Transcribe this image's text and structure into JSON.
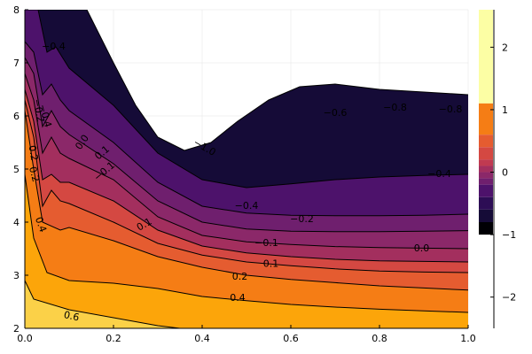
{
  "chart_data": {
    "type": "contour",
    "title": "",
    "xlabel": "",
    "ylabel": "",
    "xlim": [
      0.0,
      1.0
    ],
    "ylim": [
      2,
      8
    ],
    "x_ticks": [
      "0.0",
      "0.2",
      "0.4",
      "0.6",
      "0.8",
      "1.0"
    ],
    "y_ticks": [
      "2",
      "3",
      "4",
      "5",
      "6",
      "7",
      "8"
    ],
    "grid": true,
    "colormap": "inferno",
    "colorbar": {
      "range": [
        -2.5,
        2.6
      ],
      "ticks": [
        "2",
        "1",
        "0",
        "−1",
        "−2"
      ],
      "tick_values": [
        2,
        1,
        0,
        -1,
        -2
      ],
      "bands": [
        {
          "from": 1.1,
          "to": 2.6,
          "color": "#fcfea4"
        },
        {
          "from": 0.6,
          "to": 1.1,
          "color": "#f57d15"
        },
        {
          "from": 0.4,
          "to": 0.6,
          "color": "#e55c30"
        },
        {
          "from": 0.2,
          "to": 0.4,
          "color": "#d44842"
        },
        {
          "from": 0.1,
          "to": 0.2,
          "color": "#c03a51"
        },
        {
          "from": 0.0,
          "to": 0.1,
          "color": "#a32f5e"
        },
        {
          "from": -0.1,
          "to": 0.0,
          "color": "#8b2869"
        },
        {
          "from": -0.2,
          "to": -0.1,
          "color": "#6f1f6e"
        },
        {
          "from": -0.4,
          "to": -0.2,
          "color": "#4d126b"
        },
        {
          "from": -0.6,
          "to": -0.4,
          "color": "#2d0d55"
        },
        {
          "from": -0.8,
          "to": -0.6,
          "color": "#150b37"
        },
        {
          "from": -1.0,
          "to": -0.8,
          "color": "#000004"
        }
      ]
    },
    "regions": [
      {
        "level": 0.6,
        "color": "#fbd148",
        "boundary": [
          [
            0.0,
            2.9
          ],
          [
            0.02,
            2.55
          ],
          [
            0.1,
            2.35
          ],
          [
            0.2,
            2.2
          ],
          [
            0.3,
            2.05
          ],
          [
            0.35,
            2.0
          ]
        ]
      },
      {
        "level": 0.4,
        "color": "#fca50a",
        "boundary": [
          [
            0.0,
            4.9
          ],
          [
            0.02,
            3.7
          ],
          [
            0.05,
            3.05
          ],
          [
            0.1,
            2.9
          ],
          [
            0.2,
            2.85
          ],
          [
            0.3,
            2.75
          ],
          [
            0.4,
            2.6
          ],
          [
            0.5,
            2.52
          ],
          [
            0.6,
            2.45
          ],
          [
            0.7,
            2.4
          ],
          [
            0.8,
            2.36
          ],
          [
            0.9,
            2.33
          ],
          [
            1.0,
            2.3
          ]
        ]
      },
      {
        "level": 0.2,
        "color": "#f57d15",
        "boundary": [
          [
            0.0,
            6.1
          ],
          [
            0.02,
            5.0
          ],
          [
            0.04,
            4.0
          ],
          [
            0.08,
            3.85
          ],
          [
            0.1,
            3.9
          ],
          [
            0.2,
            3.65
          ],
          [
            0.3,
            3.35
          ],
          [
            0.4,
            3.15
          ],
          [
            0.5,
            3.0
          ],
          [
            0.6,
            2.92
          ],
          [
            0.7,
            2.86
          ],
          [
            0.8,
            2.8
          ],
          [
            0.9,
            2.76
          ],
          [
            1.0,
            2.72
          ]
        ]
      },
      {
        "level": 0.1,
        "color": "#e55c30",
        "boundary": [
          [
            0.0,
            6.3
          ],
          [
            0.02,
            5.6
          ],
          [
            0.04,
            4.3
          ],
          [
            0.06,
            4.6
          ],
          [
            0.08,
            4.4
          ],
          [
            0.1,
            4.35
          ],
          [
            0.2,
            4.0
          ],
          [
            0.3,
            3.6
          ],
          [
            0.4,
            3.38
          ],
          [
            0.5,
            3.25
          ],
          [
            0.6,
            3.18
          ],
          [
            0.7,
            3.12
          ],
          [
            0.8,
            3.08
          ],
          [
            0.9,
            3.06
          ],
          [
            1.0,
            3.05
          ]
        ]
      },
      {
        "level": 0.0,
        "color": "#d44842",
        "boundary": [
          [
            0.0,
            6.5
          ],
          [
            0.02,
            5.9
          ],
          [
            0.04,
            4.8
          ],
          [
            0.06,
            4.9
          ],
          [
            0.08,
            4.75
          ],
          [
            0.1,
            4.75
          ],
          [
            0.2,
            4.4
          ],
          [
            0.3,
            3.85
          ],
          [
            0.4,
            3.55
          ],
          [
            0.5,
            3.42
          ],
          [
            0.6,
            3.35
          ],
          [
            0.7,
            3.3
          ],
          [
            0.8,
            3.27
          ],
          [
            0.9,
            3.26
          ],
          [
            1.0,
            3.25
          ]
        ]
      },
      {
        "level": -0.1,
        "color": "#a32f5e",
        "boundary": [
          [
            0.0,
            6.8
          ],
          [
            0.02,
            6.3
          ],
          [
            0.04,
            5.3
          ],
          [
            0.06,
            5.6
          ],
          [
            0.08,
            5.3
          ],
          [
            0.1,
            5.2
          ],
          [
            0.2,
            4.8
          ],
          [
            0.3,
            4.1
          ],
          [
            0.4,
            3.75
          ],
          [
            0.5,
            3.63
          ],
          [
            0.6,
            3.58
          ],
          [
            0.7,
            3.54
          ],
          [
            0.8,
            3.52
          ],
          [
            0.9,
            3.51
          ],
          [
            1.0,
            3.5
          ]
        ]
      },
      {
        "level": -0.2,
        "color": "#8b2869",
        "boundary": [
          [
            0.0,
            7.1
          ],
          [
            0.02,
            6.8
          ],
          [
            0.04,
            5.8
          ],
          [
            0.06,
            6.1
          ],
          [
            0.08,
            5.8
          ],
          [
            0.1,
            5.65
          ],
          [
            0.2,
            5.1
          ],
          [
            0.3,
            4.4
          ],
          [
            0.4,
            4.0
          ],
          [
            0.5,
            3.87
          ],
          [
            0.6,
            3.83
          ],
          [
            0.7,
            3.82
          ],
          [
            0.8,
            3.82
          ],
          [
            0.9,
            3.83
          ],
          [
            1.0,
            3.84
          ]
        ]
      },
      {
        "level": -0.4,
        "color": "#6f1f6e",
        "boundary": [
          [
            0.0,
            7.4
          ],
          [
            0.02,
            7.2
          ],
          [
            0.04,
            6.4
          ],
          [
            0.06,
            6.6
          ],
          [
            0.08,
            6.3
          ],
          [
            0.1,
            6.1
          ],
          [
            0.2,
            5.5
          ],
          [
            0.3,
            4.75
          ],
          [
            0.4,
            4.3
          ],
          [
            0.5,
            4.17
          ],
          [
            0.6,
            4.13
          ],
          [
            0.7,
            4.12
          ],
          [
            0.8,
            4.12
          ],
          [
            0.9,
            4.13
          ],
          [
            1.0,
            4.15
          ]
        ]
      },
      {
        "level": -0.6,
        "color": "#4d126b",
        "boundary": [
          [
            0.0,
            8.0
          ],
          [
            0.03,
            8.0
          ],
          [
            0.05,
            7.2
          ],
          [
            0.07,
            7.3
          ],
          [
            0.1,
            6.9
          ],
          [
            0.2,
            6.2
          ],
          [
            0.3,
            5.3
          ],
          [
            0.4,
            4.8
          ],
          [
            0.5,
            4.65
          ],
          [
            0.6,
            4.72
          ],
          [
            0.7,
            4.8
          ],
          [
            0.8,
            4.85
          ],
          [
            0.9,
            4.88
          ],
          [
            1.0,
            4.9
          ]
        ]
      },
      {
        "level": -0.8,
        "color": "#150b37",
        "boundary": [
          [
            0.0,
            8.0
          ],
          [
            0.14,
            8.0
          ],
          [
            0.2,
            7.0
          ],
          [
            0.25,
            6.2
          ],
          [
            0.3,
            5.6
          ],
          [
            0.36,
            5.35
          ],
          [
            0.42,
            5.5
          ],
          [
            0.48,
            5.9
          ],
          [
            0.55,
            6.3
          ],
          [
            0.62,
            6.55
          ],
          [
            0.7,
            6.6
          ],
          [
            0.8,
            6.5
          ],
          [
            0.9,
            6.45
          ],
          [
            1.0,
            6.4
          ]
        ]
      },
      {
        "level": -1.0,
        "color": "#000004",
        "boundary": [
          [
            0.0,
            8.0
          ],
          [
            0.14,
            8.0
          ],
          [
            0.2,
            7.0
          ],
          [
            0.25,
            6.2
          ],
          [
            0.3,
            5.6
          ],
          [
            0.36,
            5.35
          ],
          [
            0.42,
            5.5
          ],
          [
            0.48,
            5.9
          ],
          [
            0.55,
            6.3
          ],
          [
            0.62,
            6.55
          ],
          [
            0.7,
            6.6
          ],
          [
            0.8,
            6.5
          ],
          [
            0.9,
            6.45
          ],
          [
            1.0,
            6.4
          ]
        ]
      }
    ],
    "contour_labels": [
      {
        "text": "0.6",
        "x": 0.105,
        "y": 2.22,
        "angle": 12
      },
      {
        "text": "0.4",
        "x": 0.48,
        "y": 2.57,
        "angle": 0
      },
      {
        "text": "0.4",
        "x": 0.035,
        "y": 3.95,
        "angle": 70
      },
      {
        "text": "0.2",
        "x": 0.485,
        "y": 2.97,
        "angle": 0
      },
      {
        "text": "0.2",
        "x": 0.02,
        "y": 4.9,
        "angle": 75
      },
      {
        "text": "0.2",
        "x": 0.018,
        "y": 5.3,
        "angle": 80
      },
      {
        "text": "0.1",
        "x": 0.555,
        "y": 3.21,
        "angle": 0
      },
      {
        "text": "0.1",
        "x": 0.27,
        "y": 3.95,
        "angle": -30
      },
      {
        "text": "0.1",
        "x": 0.175,
        "y": 5.3,
        "angle": -40
      },
      {
        "text": "−0.1",
        "x": 0.545,
        "y": 3.6,
        "angle": 0
      },
      {
        "text": "−0.1",
        "x": 0.18,
        "y": 4.95,
        "angle": -40
      },
      {
        "text": "0.0",
        "x": 0.895,
        "y": 3.5,
        "angle": 0
      },
      {
        "text": "0.0",
        "x": 0.13,
        "y": 5.5,
        "angle": -55
      },
      {
        "text": "−0.2",
        "x": 0.625,
        "y": 4.05,
        "angle": 0
      },
      {
        "text": "−0.2",
        "x": 0.03,
        "y": 6.1,
        "angle": 80
      },
      {
        "text": "−0.4",
        "x": 0.5,
        "y": 4.3,
        "angle": 0
      },
      {
        "text": "−0.4",
        "x": 0.935,
        "y": 4.9,
        "angle": 0
      },
      {
        "text": "−0.4",
        "x": 0.045,
        "y": 6.0,
        "angle": 75
      },
      {
        "text": "−0.4",
        "x": 0.065,
        "y": 7.3,
        "angle": 0
      },
      {
        "text": "−0.6",
        "x": 0.7,
        "y": 6.05,
        "angle": 0
      },
      {
        "text": "−0.8",
        "x": 0.835,
        "y": 6.15,
        "angle": 0
      },
      {
        "text": "−0.8",
        "x": 0.96,
        "y": 6.12,
        "angle": 0
      },
      {
        "text": "−1.0",
        "x": 0.405,
        "y": 5.4,
        "angle": 30
      }
    ]
  }
}
